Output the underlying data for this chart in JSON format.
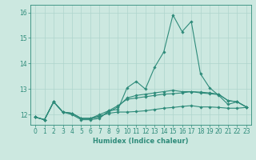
{
  "xlabel": "Humidex (Indice chaleur)",
  "x": [
    0,
    1,
    2,
    3,
    4,
    5,
    6,
    7,
    8,
    9,
    10,
    11,
    12,
    13,
    14,
    15,
    16,
    17,
    18,
    19,
    20,
    21,
    22,
    23
  ],
  "line1": [
    11.9,
    11.8,
    12.5,
    12.1,
    12.0,
    11.8,
    11.8,
    11.85,
    12.15,
    12.2,
    13.05,
    13.3,
    13.0,
    13.85,
    14.45,
    15.9,
    15.25,
    15.65,
    13.6,
    13.05,
    12.75,
    12.4,
    12.5,
    12.3
  ],
  "line2": [
    11.9,
    11.8,
    12.5,
    12.1,
    12.05,
    11.85,
    11.85,
    11.9,
    12.1,
    12.3,
    12.65,
    12.75,
    12.8,
    12.85,
    12.9,
    12.95,
    12.9,
    12.9,
    12.85,
    12.82,
    12.78,
    12.55,
    12.5,
    12.3
  ],
  "line3": [
    11.9,
    11.8,
    12.5,
    12.1,
    12.05,
    11.85,
    11.85,
    12.0,
    12.15,
    12.35,
    12.6,
    12.65,
    12.7,
    12.75,
    12.8,
    12.82,
    12.85,
    12.9,
    12.88,
    12.85,
    12.8,
    12.55,
    12.5,
    12.3
  ],
  "line4": [
    11.9,
    11.8,
    12.5,
    12.1,
    12.05,
    11.85,
    11.85,
    11.95,
    12.05,
    12.1,
    12.1,
    12.12,
    12.15,
    12.2,
    12.25,
    12.28,
    12.32,
    12.35,
    12.3,
    12.3,
    12.28,
    12.25,
    12.25,
    12.28
  ],
  "line_color": "#2e8b7a",
  "bg_color": "#cce8e0",
  "grid_color": "#afd4cc",
  "ylim": [
    11.6,
    16.3
  ],
  "yticks": [
    12,
    13,
    14,
    15,
    16
  ],
  "marker": "D",
  "markersize": 1.8,
  "linewidth": 0.8,
  "tick_fontsize": 5.5,
  "xlabel_fontsize": 6.0
}
